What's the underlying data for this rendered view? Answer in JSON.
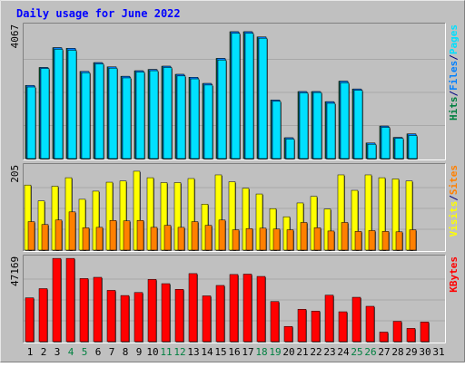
{
  "chart_data": {
    "type": "bar",
    "title": "Daily usage for June 2022",
    "categories": [
      "1",
      "2",
      "3",
      "4",
      "5",
      "6",
      "7",
      "8",
      "9",
      "10",
      "11",
      "12",
      "13",
      "14",
      "15",
      "16",
      "17",
      "18",
      "19",
      "20",
      "21",
      "22",
      "23",
      "24",
      "25",
      "26",
      "27",
      "28",
      "29",
      "30",
      "31"
    ],
    "weekend_days": [
      "4",
      "5",
      "11",
      "12",
      "18",
      "19",
      "25",
      "26"
    ],
    "panels": [
      {
        "name": "pages-files-hits",
        "ymax_label": "4067",
        "ylim": [
          0,
          4067
        ],
        "legend": [
          {
            "text": "Hits",
            "color": "#008040"
          },
          {
            "text": "/",
            "color": "#000080"
          },
          {
            "text": "Files",
            "color": "#0080ff"
          },
          {
            "text": "/",
            "color": "#000080"
          },
          {
            "text": "Pages",
            "color": "#00e0ff"
          }
        ],
        "series": [
          {
            "name": "Hits",
            "color": "#008040",
            "values": [
              2250,
              2800,
              3410,
              3390,
              2680,
              2950,
              2820,
              2530,
              2700,
              2740,
              2840,
              2590,
              2500,
              2310,
              3080,
              3900,
              3900,
              3740,
              1800,
              640,
              2060,
              2060,
              1750,
              2380,
              2140,
              480,
              1000,
              650,
              760,
              0,
              0
            ]
          },
          {
            "name": "Files",
            "color": "#0080ff",
            "values": [
              2250,
              2800,
              3410,
              3390,
              2680,
              2950,
              2820,
              2530,
              2700,
              2740,
              2840,
              2590,
              2500,
              2310,
              3080,
              3900,
              3900,
              3740,
              1800,
              640,
              2060,
              2060,
              1750,
              2380,
              2140,
              480,
              1000,
              650,
              760,
              0,
              0
            ]
          },
          {
            "name": "Pages",
            "color": "#00e0ff",
            "values": [
              2200,
              2770,
              3360,
              3330,
              2640,
              2910,
              2780,
              2480,
              2660,
              2700,
              2800,
              2540,
              2450,
              2260,
              3030,
              3850,
              3850,
              3700,
              1760,
              600,
              2020,
              2030,
              1700,
              2330,
              2100,
              440,
              960,
              620,
              710,
              0,
              0
            ]
          }
        ]
      },
      {
        "name": "sites-visits",
        "ymax_label": "205",
        "ylim": [
          0,
          205
        ],
        "legend": [
          {
            "text": "Visits",
            "color": "#ffff00"
          },
          {
            "text": "/",
            "color": "#000080"
          },
          {
            "text": "Sites",
            "color": "#ff8000"
          }
        ],
        "series": [
          {
            "name": "Visits",
            "color": "#ffff00",
            "values": [
              160,
              121,
              157,
              178,
              125,
              145,
              167,
              170,
              194,
              178,
              166,
              166,
              176,
              113,
              185,
              168,
              152,
              138,
              102,
              82,
              116,
              132,
              101,
              185,
              147,
              185,
              178,
              175,
              170,
              0,
              0
            ]
          },
          {
            "name": "Sites",
            "color": "#ff8000",
            "values": [
              70,
              63,
              74,
              94,
              55,
              56,
              73,
              72,
              73,
              56,
              61,
              56,
              70,
              61,
              74,
              50,
              53,
              54,
              52,
              50,
              68,
              55,
              47,
              68,
              46,
              48,
              46,
              45,
              50,
              0,
              0
            ]
          }
        ]
      },
      {
        "name": "kbytes",
        "ymax_label": "47169",
        "ylim": [
          0,
          47169
        ],
        "legend": [
          {
            "text": "KBytes",
            "color": "#ff0000"
          }
        ],
        "series": [
          {
            "name": "KBytes",
            "color": "#ff0000",
            "values": [
              24800,
              30000,
              47100,
              47100,
              35700,
              36400,
              29000,
              26100,
              27800,
              35200,
              32800,
              29600,
              38500,
              25900,
              31800,
              38000,
              38200,
              36900,
              22700,
              8600,
              18300,
              17300,
              26300,
              16900,
              25100,
              20000,
              5400,
              11500,
              7500,
              11100,
              0
            ]
          }
        ]
      }
    ],
    "colors": {
      "background": "#c0c0c0",
      "frame_light": "#e8e8e8",
      "frame_dark": "#808080",
      "title": "#0000ff",
      "axis_text": "#000000",
      "weekend_label": "#008040"
    }
  }
}
